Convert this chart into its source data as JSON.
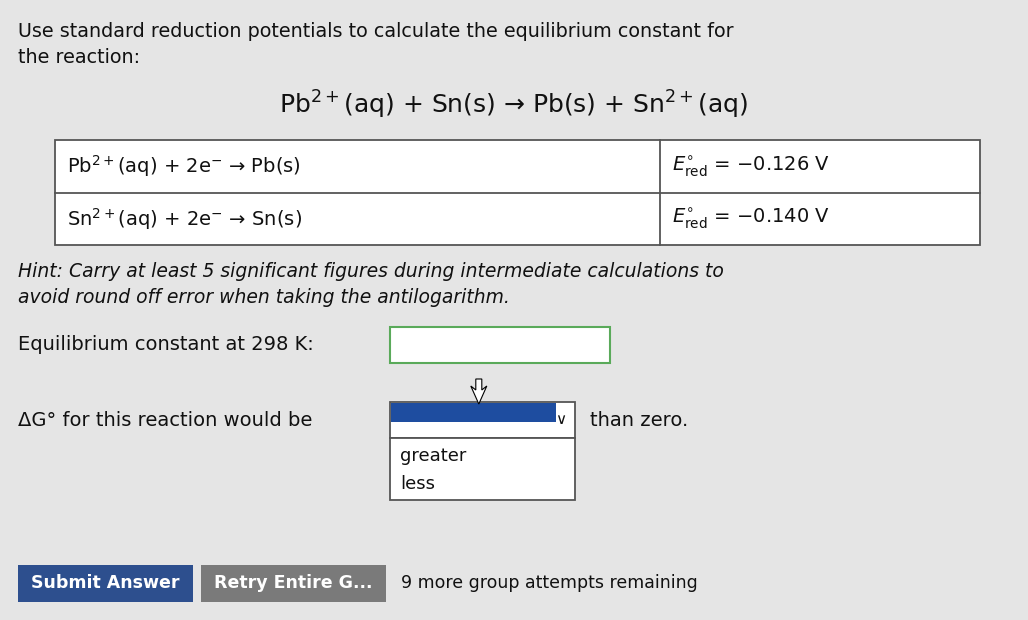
{
  "bg_color": "#e5e5e5",
  "title_text1": "Use standard reduction potentials to calculate the equilibrium constant for",
  "title_text2": "the reaction:",
  "reaction_main": "Pb$^{2+}$(aq) + Sn(s) → Pb(s) + Sn$^{2+}$(aq)",
  "table_row1_left": "Pb$^{2+}$(aq) + 2e$^{-}$ → Pb(s)",
  "table_row1_right": "$E^{\\circ}_{\\rm red}$ = −0.126 V",
  "table_row2_left": "Sn$^{2+}$(aq) + 2e$^{-}$ → Sn(s)",
  "table_row2_right": "$E^{\\circ}_{\\rm red}$ = −0.140 V",
  "hint_text1": "Hint: Carry at least 5 significant figures during intermediate calculations to",
  "hint_text2": "avoid round off error when taking the antilogarithm.",
  "eq_label": "Equilibrium constant at 298 K:",
  "dg_label": "ΔG° for this reaction would be",
  "dg_suffix": "than zero.",
  "dropdown_items": [
    "greater",
    "less"
  ],
  "submit_text": "Submit Answer",
  "retry_text": "Retry Entire G...",
  "footer_text": "9 more group attempts remaining",
  "submit_btn_color": "#2d4f8e",
  "retry_btn_color": "#7a7a7a",
  "dropdown_blue_color": "#1e4da0",
  "input_border_color": "#5aaa5a",
  "table_border_color": "#555555",
  "font_color": "#111111",
  "white": "#ffffff"
}
